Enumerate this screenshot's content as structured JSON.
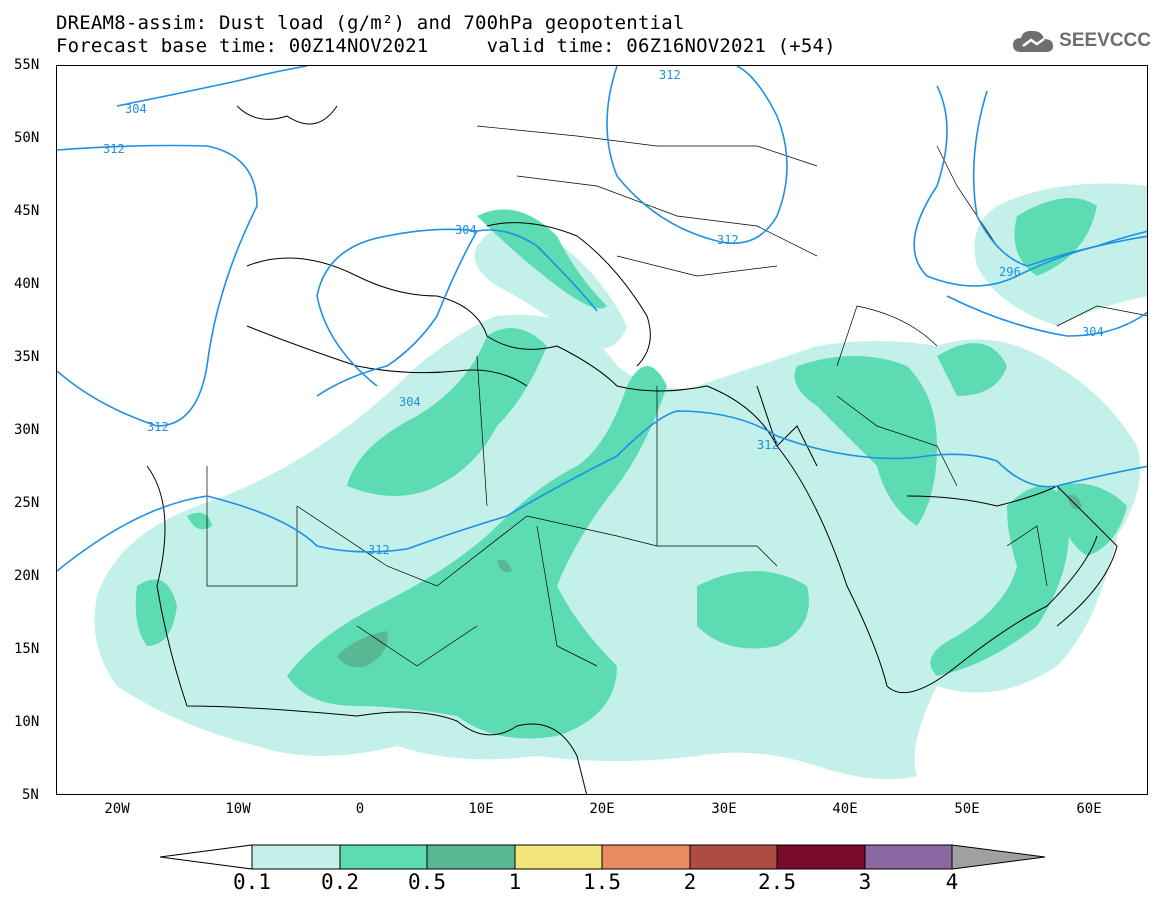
{
  "header": {
    "title_line1": "DREAM8-assim: Dust load (g/m²) and 700hPa geopotential",
    "title_line2": "Forecast base time: 00Z14NOV2021     valid time: 06Z16NOV2021 (+54)",
    "logo_text": "SEEVCCC",
    "logo_icon": "cloud-icon"
  },
  "axes": {
    "lat_labels": [
      "55N",
      "50N",
      "45N",
      "40N",
      "35N",
      "30N",
      "25N",
      "20N",
      "15N",
      "10N",
      "5N"
    ],
    "lon_labels": [
      "20W",
      "10W",
      "0",
      "10E",
      "20E",
      "30E",
      "40E",
      "50E",
      "60E"
    ]
  },
  "contour_labels": [
    "304",
    "312",
    "312",
    "304",
    "304",
    "312",
    "312",
    "312",
    "312",
    "296",
    "304"
  ],
  "colorbar": {
    "labels": [
      "0.1",
      "0.2",
      "0.5",
      "1",
      "1.5",
      "2",
      "2.5",
      "3",
      "4"
    ],
    "colors": [
      "#c4f0ea",
      "#5ddcb4",
      "#58b894",
      "#f2e67a",
      "#e98c64",
      "#ad4c40",
      "#7a0a2a",
      "#8c68a0",
      "#a0a0a0"
    ]
  },
  "colors": {
    "dust_low": "#c4f0ea",
    "dust_mid": "#5ddcb4",
    "dust_high": "#58b894",
    "contour": "#1e90e6"
  }
}
